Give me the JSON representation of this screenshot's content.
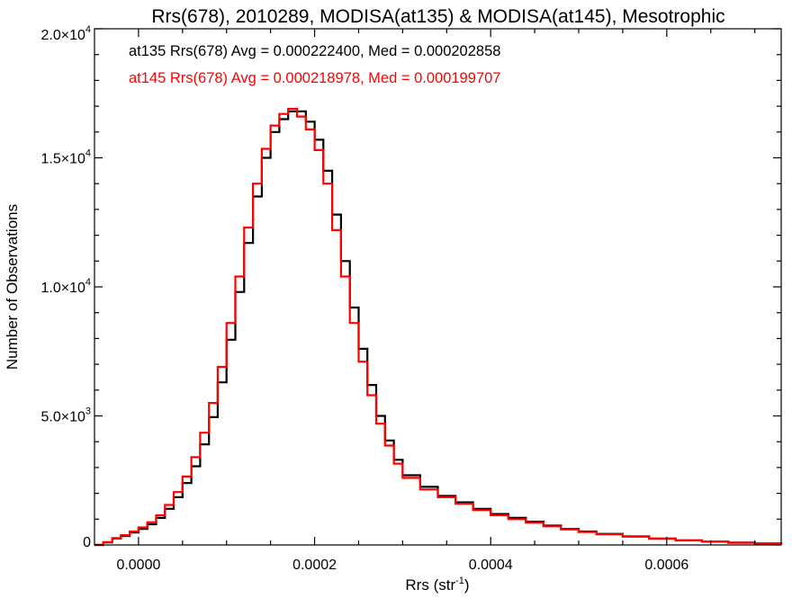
{
  "chart_data": {
    "type": "line",
    "title": "Rrs(678), 2010289, MODISA(at135) & MODISA(at145), Mesotrophic",
    "xlabel_base": "Rrs (str",
    "xlabel_exp": "-1",
    "xlabel_close": ")",
    "ylabel": "Number of Observations",
    "xlim": [
      -5e-05,
      0.00073
    ],
    "ylim": [
      0,
      20000
    ],
    "x_ticks": [
      {
        "value": 0.0,
        "label": "0.0000"
      },
      {
        "value": 0.0002,
        "label": "0.0002"
      },
      {
        "value": 0.0004,
        "label": "0.0004"
      },
      {
        "value": 0.0006,
        "label": "0.0006"
      }
    ],
    "y_ticks": [
      {
        "value": 0,
        "mant": "0",
        "exp": ""
      },
      {
        "value": 5000,
        "mant": "5.0×10",
        "exp": "3"
      },
      {
        "value": 10000,
        "mant": "1.0×10",
        "exp": "4"
      },
      {
        "value": 15000,
        "mant": "1.5×10",
        "exp": "4"
      },
      {
        "value": 20000,
        "mant": "2.0×10",
        "exp": "4"
      }
    ],
    "grid": false,
    "series": [
      {
        "name": "at135",
        "color": "#000000",
        "stats_text": "at135 Rrs(678) Avg = 0.000222400, Med = 0.000202858",
        "x": [
          -5e-05,
          -4e-05,
          -3e-05,
          -2e-05,
          -1e-05,
          0.0,
          1e-05,
          2e-05,
          3e-05,
          4e-05,
          5e-05,
          6e-05,
          7e-05,
          8e-05,
          9e-05,
          0.0001,
          0.00011,
          0.00012,
          0.00013,
          0.00014,
          0.00015,
          0.00016,
          0.00017,
          0.00018,
          0.00019,
          0.0002,
          0.00021,
          0.00022,
          0.00023,
          0.00024,
          0.00025,
          0.00026,
          0.00027,
          0.00028,
          0.00029,
          0.0003,
          0.00032,
          0.00034,
          0.00036,
          0.00038,
          0.0004,
          0.00042,
          0.00044,
          0.00046,
          0.00048,
          0.0005,
          0.00052,
          0.00055,
          0.00058,
          0.00061,
          0.00064,
          0.00067,
          0.0007,
          0.00073
        ],
        "y": [
          0,
          100,
          250,
          350,
          480,
          620,
          800,
          1050,
          1400,
          1850,
          2400,
          3050,
          3900,
          4950,
          6300,
          7950,
          9800,
          11700,
          13500,
          15000,
          16000,
          16500,
          16800,
          16800,
          16400,
          15700,
          14500,
          12800,
          11000,
          9200,
          7600,
          6200,
          5000,
          4050,
          3300,
          2700,
          2250,
          1900,
          1650,
          1400,
          1200,
          1050,
          900,
          750,
          620,
          520,
          430,
          330,
          250,
          180,
          130,
          90,
          60,
          40
        ]
      },
      {
        "name": "at145",
        "color": "#ff0000",
        "stats_text": "at145 Rrs(678) Avg = 0.000218978, Med = 0.000199707",
        "x": [
          -5e-05,
          -4e-05,
          -3e-05,
          -2e-05,
          -1e-05,
          0.0,
          1e-05,
          2e-05,
          3e-05,
          4e-05,
          5e-05,
          6e-05,
          7e-05,
          8e-05,
          9e-05,
          0.0001,
          0.00011,
          0.00012,
          0.00013,
          0.00014,
          0.00015,
          0.00016,
          0.00017,
          0.00018,
          0.00019,
          0.0002,
          0.00021,
          0.00022,
          0.00023,
          0.00024,
          0.00025,
          0.00026,
          0.00027,
          0.00028,
          0.00029,
          0.0003,
          0.00032,
          0.00034,
          0.00036,
          0.00038,
          0.0004,
          0.00042,
          0.00044,
          0.00046,
          0.00048,
          0.0005,
          0.00052,
          0.00055,
          0.00058,
          0.00061,
          0.00064,
          0.00067,
          0.0007,
          0.00073
        ],
        "y": [
          0,
          110,
          270,
          380,
          520,
          680,
          880,
          1150,
          1550,
          2050,
          2650,
          3400,
          4350,
          5500,
          6900,
          8600,
          10400,
          12300,
          14000,
          15350,
          16250,
          16700,
          16900,
          16600,
          16100,
          15300,
          14000,
          12200,
          10400,
          8600,
          7100,
          5800,
          4700,
          3850,
          3150,
          2600,
          2150,
          1850,
          1600,
          1350,
          1150,
          1000,
          860,
          720,
          600,
          500,
          410,
          320,
          240,
          175,
          125,
          85,
          55,
          35
        ]
      }
    ]
  }
}
